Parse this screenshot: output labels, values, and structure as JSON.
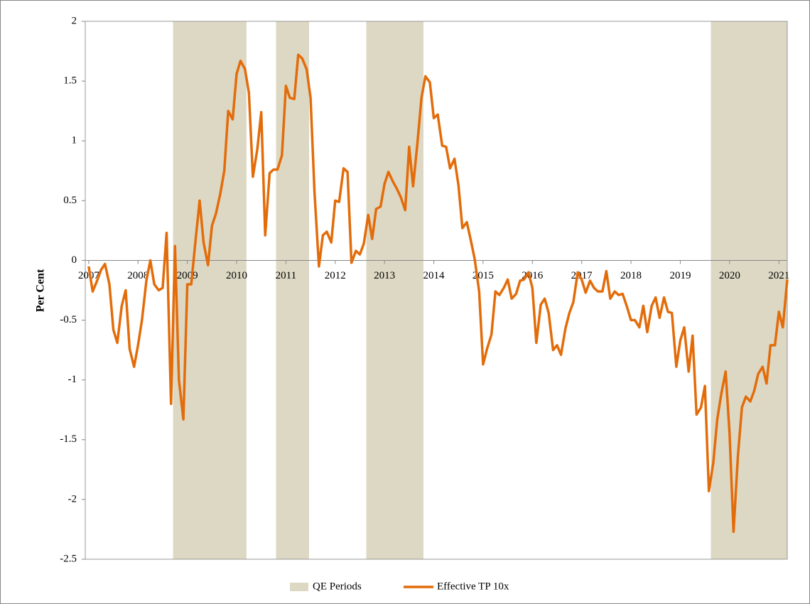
{
  "chart_data": {
    "type": "line",
    "ylabel": "Per Cent",
    "xlim": [
      2006.93,
      2021.17
    ],
    "xticks": [
      2007,
      2008,
      2009,
      2010,
      2011,
      2012,
      2013,
      2014,
      2015,
      2016,
      2017,
      2018,
      2019,
      2020,
      2021
    ],
    "ylim": [
      -2.5,
      2
    ],
    "yticks": [
      2,
      1.5,
      1,
      0.5,
      0,
      -0.5,
      -1,
      -1.5,
      -2,
      -2.5
    ],
    "legend": "bottom",
    "shaded_periods": {
      "name": "QE Periods",
      "color": "#ddd8c4",
      "ranges": [
        [
          2008.71,
          2010.2
        ],
        [
          2010.8,
          2011.47
        ],
        [
          2012.63,
          2013.79
        ],
        [
          2019.62,
          2021.17
        ]
      ]
    },
    "series": [
      {
        "name": "Effective TP 10x",
        "color": "#e36c0a",
        "x": [
          2007,
          2007.08,
          2007.17,
          2007.25,
          2007.33,
          2007.42,
          2007.5,
          2007.58,
          2007.67,
          2007.75,
          2007.83,
          2007.92,
          2008,
          2008.08,
          2008.17,
          2008.25,
          2008.33,
          2008.42,
          2008.5,
          2008.58,
          2008.67,
          2008.75,
          2008.83,
          2008.92,
          2009,
          2009.08,
          2009.17,
          2009.25,
          2009.33,
          2009.42,
          2009.5,
          2009.58,
          2009.67,
          2009.75,
          2009.83,
          2009.92,
          2010,
          2010.08,
          2010.17,
          2010.25,
          2010.33,
          2010.42,
          2010.5,
          2010.58,
          2010.67,
          2010.75,
          2010.83,
          2010.92,
          2011,
          2011.08,
          2011.17,
          2011.25,
          2011.33,
          2011.42,
          2011.5,
          2011.58,
          2011.67,
          2011.75,
          2011.83,
          2011.92,
          2012,
          2012.08,
          2012.17,
          2012.25,
          2012.33,
          2012.42,
          2012.5,
          2012.58,
          2012.67,
          2012.75,
          2012.83,
          2012.92,
          2013,
          2013.08,
          2013.17,
          2013.25,
          2013.33,
          2013.42,
          2013.5,
          2013.58,
          2013.67,
          2013.75,
          2013.83,
          2013.92,
          2014,
          2014.08,
          2014.17,
          2014.25,
          2014.33,
          2014.42,
          2014.5,
          2014.58,
          2014.67,
          2014.75,
          2014.83,
          2014.92,
          2015,
          2015.08,
          2015.17,
          2015.25,
          2015.33,
          2015.42,
          2015.5,
          2015.58,
          2015.67,
          2015.75,
          2015.83,
          2015.92,
          2016,
          2016.08,
          2016.17,
          2016.25,
          2016.33,
          2016.42,
          2016.5,
          2016.58,
          2016.67,
          2016.75,
          2016.83,
          2016.92,
          2017,
          2017.08,
          2017.17,
          2017.25,
          2017.33,
          2017.42,
          2017.5,
          2017.58,
          2017.67,
          2017.75,
          2017.83,
          2017.92,
          2018,
          2018.08,
          2018.17,
          2018.25,
          2018.33,
          2018.42,
          2018.5,
          2018.58,
          2018.67,
          2018.75,
          2018.83,
          2018.92,
          2019,
          2019.08,
          2019.17,
          2019.25,
          2019.33,
          2019.42,
          2019.5,
          2019.58,
          2019.67,
          2019.75,
          2019.83,
          2019.92,
          2020,
          2020.08,
          2020.17,
          2020.25,
          2020.33,
          2020.42,
          2020.5,
          2020.58,
          2020.67,
          2020.75,
          2020.83,
          2020.92,
          2021,
          2021.08,
          2021.17
        ],
        "values": [
          -0.05,
          -0.26,
          -0.17,
          -0.08,
          -0.03,
          -0.2,
          -0.58,
          -0.69,
          -0.38,
          -0.25,
          -0.74,
          -0.89,
          -0.71,
          -0.5,
          -0.17,
          0,
          -0.2,
          -0.25,
          -0.23,
          0.23,
          -1.2,
          0.12,
          -1.0,
          -1.33,
          -0.2,
          -0.2,
          0.18,
          0.5,
          0.15,
          -0.04,
          0.29,
          0.39,
          0.56,
          0.75,
          1.25,
          1.18,
          1.56,
          1.67,
          1.6,
          1.4,
          0.7,
          0.93,
          1.24,
          0.21,
          0.73,
          0.76,
          0.76,
          0.88,
          1.46,
          1.36,
          1.35,
          1.72,
          1.69,
          1.6,
          1.36,
          0.57,
          -0.05,
          0.21,
          0.24,
          0.15,
          0.5,
          0.49,
          0.77,
          0.74,
          -0.02,
          0.08,
          0.05,
          0.14,
          0.38,
          0.18,
          0.43,
          0.45,
          0.64,
          0.74,
          0.66,
          0.6,
          0.53,
          0.42,
          0.95,
          0.62,
          0.99,
          1.36,
          1.54,
          1.49,
          1.19,
          1.22,
          0.96,
          0.95,
          0.77,
          0.85,
          0.63,
          0.27,
          0.32,
          0.17,
          0.01,
          -0.26,
          -0.87,
          -0.74,
          -0.62,
          -0.26,
          -0.29,
          -0.23,
          -0.16,
          -0.32,
          -0.28,
          -0.17,
          -0.16,
          -0.1,
          -0.23,
          -0.69,
          -0.37,
          -0.32,
          -0.44,
          -0.75,
          -0.71,
          -0.79,
          -0.57,
          -0.44,
          -0.35,
          -0.1,
          -0.16,
          -0.27,
          -0.17,
          -0.23,
          -0.26,
          -0.26,
          -0.09,
          -0.32,
          -0.26,
          -0.29,
          -0.28,
          -0.39,
          -0.5,
          -0.5,
          -0.56,
          -0.38,
          -0.6,
          -0.38,
          -0.31,
          -0.48,
          -0.31,
          -0.43,
          -0.44,
          -0.89,
          -0.67,
          -0.56,
          -0.93,
          -0.63,
          -1.29,
          -1.23,
          -1.05,
          -1.93,
          -1.69,
          -1.33,
          -1.12,
          -0.93,
          -1.45,
          -2.27,
          -1.63,
          -1.23,
          -1.14,
          -1.18,
          -1.09,
          -0.95,
          -0.89,
          -1.03,
          -0.71,
          -0.71,
          -0.43,
          -0.56,
          -0.16
        ]
      }
    ]
  }
}
